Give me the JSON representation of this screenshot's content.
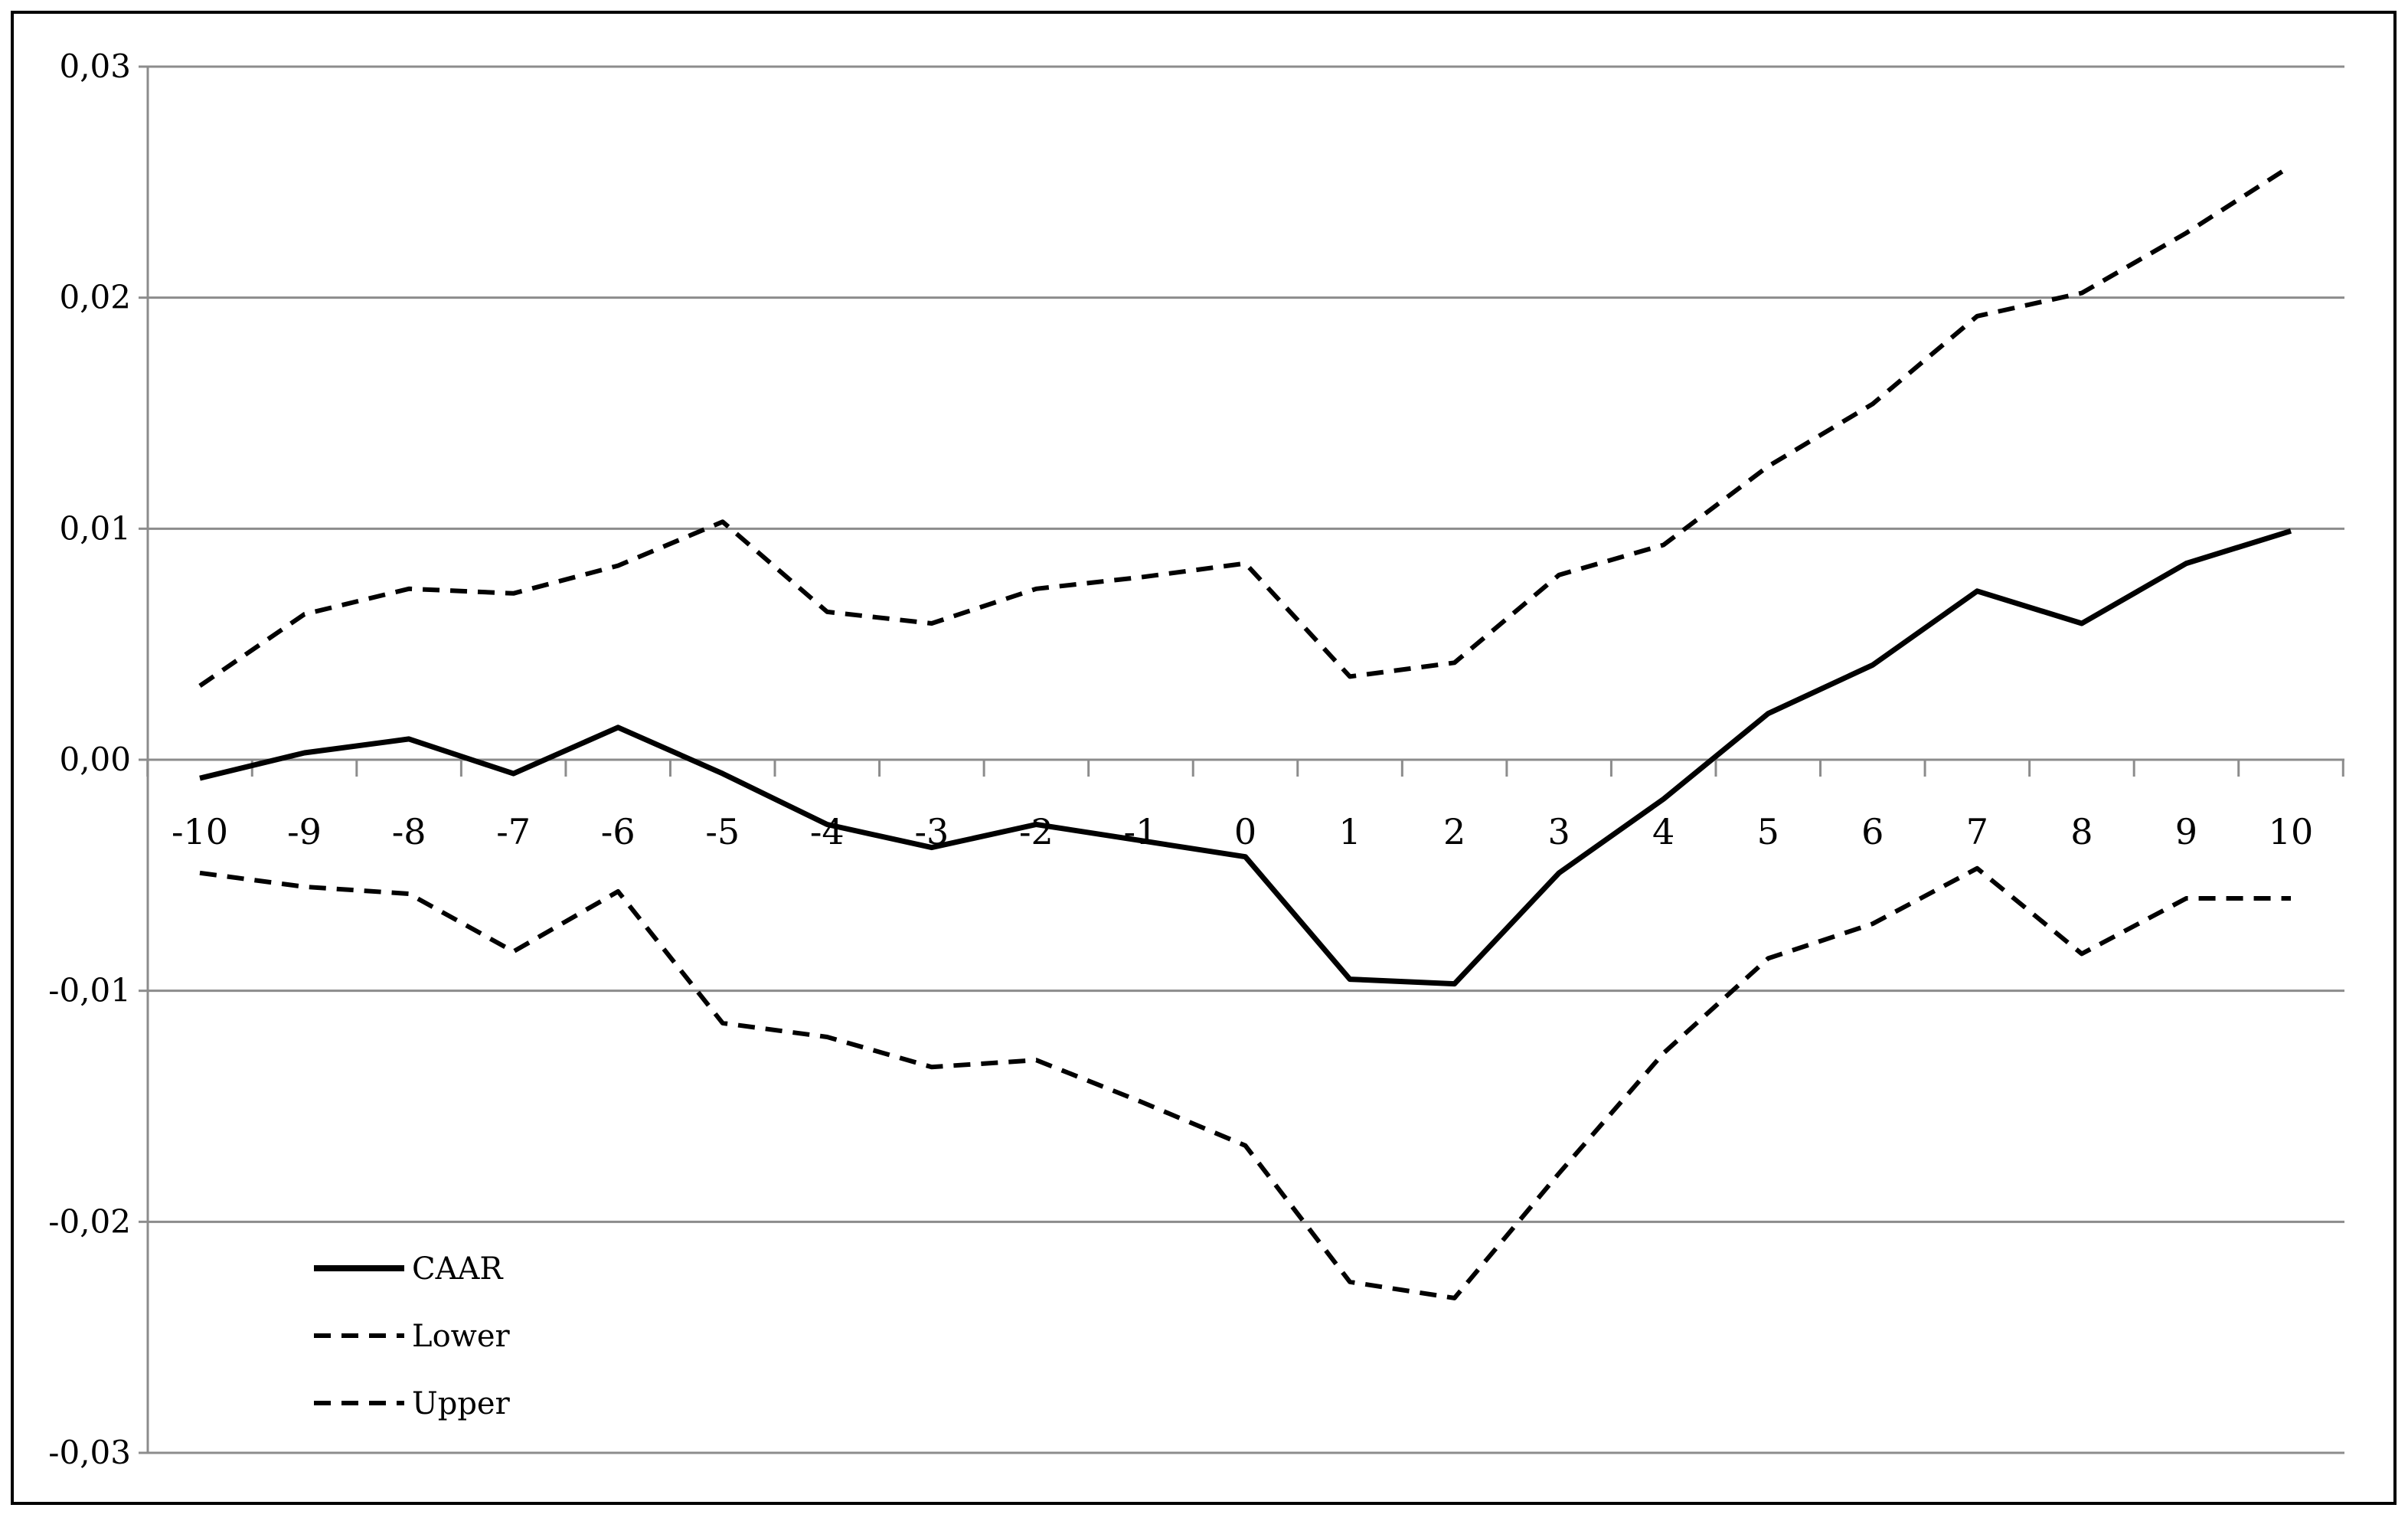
{
  "chart_data": {
    "type": "line",
    "title": "",
    "xlabel": "",
    "ylabel": "",
    "x": [
      -10,
      -9,
      -8,
      -7,
      -6,
      -5,
      -4,
      -3,
      -2,
      -1,
      0,
      1,
      2,
      3,
      4,
      5,
      6,
      7,
      8,
      9,
      10
    ],
    "xtick_labels": [
      "-10",
      "-9",
      "-8",
      "-7",
      "-6",
      "-5",
      "-4",
      "-3",
      "-2",
      "-1",
      "0",
      "1",
      "2",
      "3",
      "4",
      "5",
      "6",
      "7",
      "8",
      "9",
      "10"
    ],
    "ylim": [
      -0.03,
      0.03
    ],
    "yticks": [
      -0.03,
      -0.02,
      -0.01,
      0.0,
      0.01,
      0.02,
      0.03
    ],
    "ytick_labels": [
      "-0,03",
      "-0,02",
      "-0,01",
      "0,00",
      "0,01",
      "0,02",
      "0,03"
    ],
    "grid": true,
    "legend_position": "bottom-left",
    "series": [
      {
        "name": "CAAR",
        "style": "solid",
        "color": "#000000",
        "values": [
          -0.0008,
          0.0003,
          0.0009,
          -0.0006,
          0.0014,
          -0.0006,
          -0.0028,
          -0.0038,
          -0.0028,
          -0.0035,
          -0.0042,
          -0.0095,
          -0.0097,
          -0.0049,
          -0.0017,
          0.002,
          0.0041,
          0.0073,
          0.0059,
          0.0085,
          0.0099
        ]
      },
      {
        "name": "Lower",
        "style": "dashed",
        "color": "#000000",
        "values": [
          -0.0049,
          -0.0055,
          -0.0058,
          -0.0083,
          -0.0057,
          -0.0114,
          -0.012,
          -0.0133,
          -0.013,
          -0.0148,
          -0.0167,
          -0.0226,
          -0.0233,
          -0.0179,
          -0.0127,
          -0.0086,
          -0.0071,
          -0.0047,
          -0.0084,
          -0.006,
          -0.006
        ]
      },
      {
        "name": "Upper",
        "style": "dashed",
        "color": "#000000",
        "values": [
          0.0032,
          0.0063,
          0.0074,
          0.0072,
          0.0084,
          0.0103,
          0.0064,
          0.0059,
          0.0074,
          0.0079,
          0.0085,
          0.0036,
          0.0042,
          0.008,
          0.0093,
          0.0127,
          0.0154,
          0.0192,
          0.0202,
          0.0228,
          0.0257
        ]
      }
    ]
  }
}
